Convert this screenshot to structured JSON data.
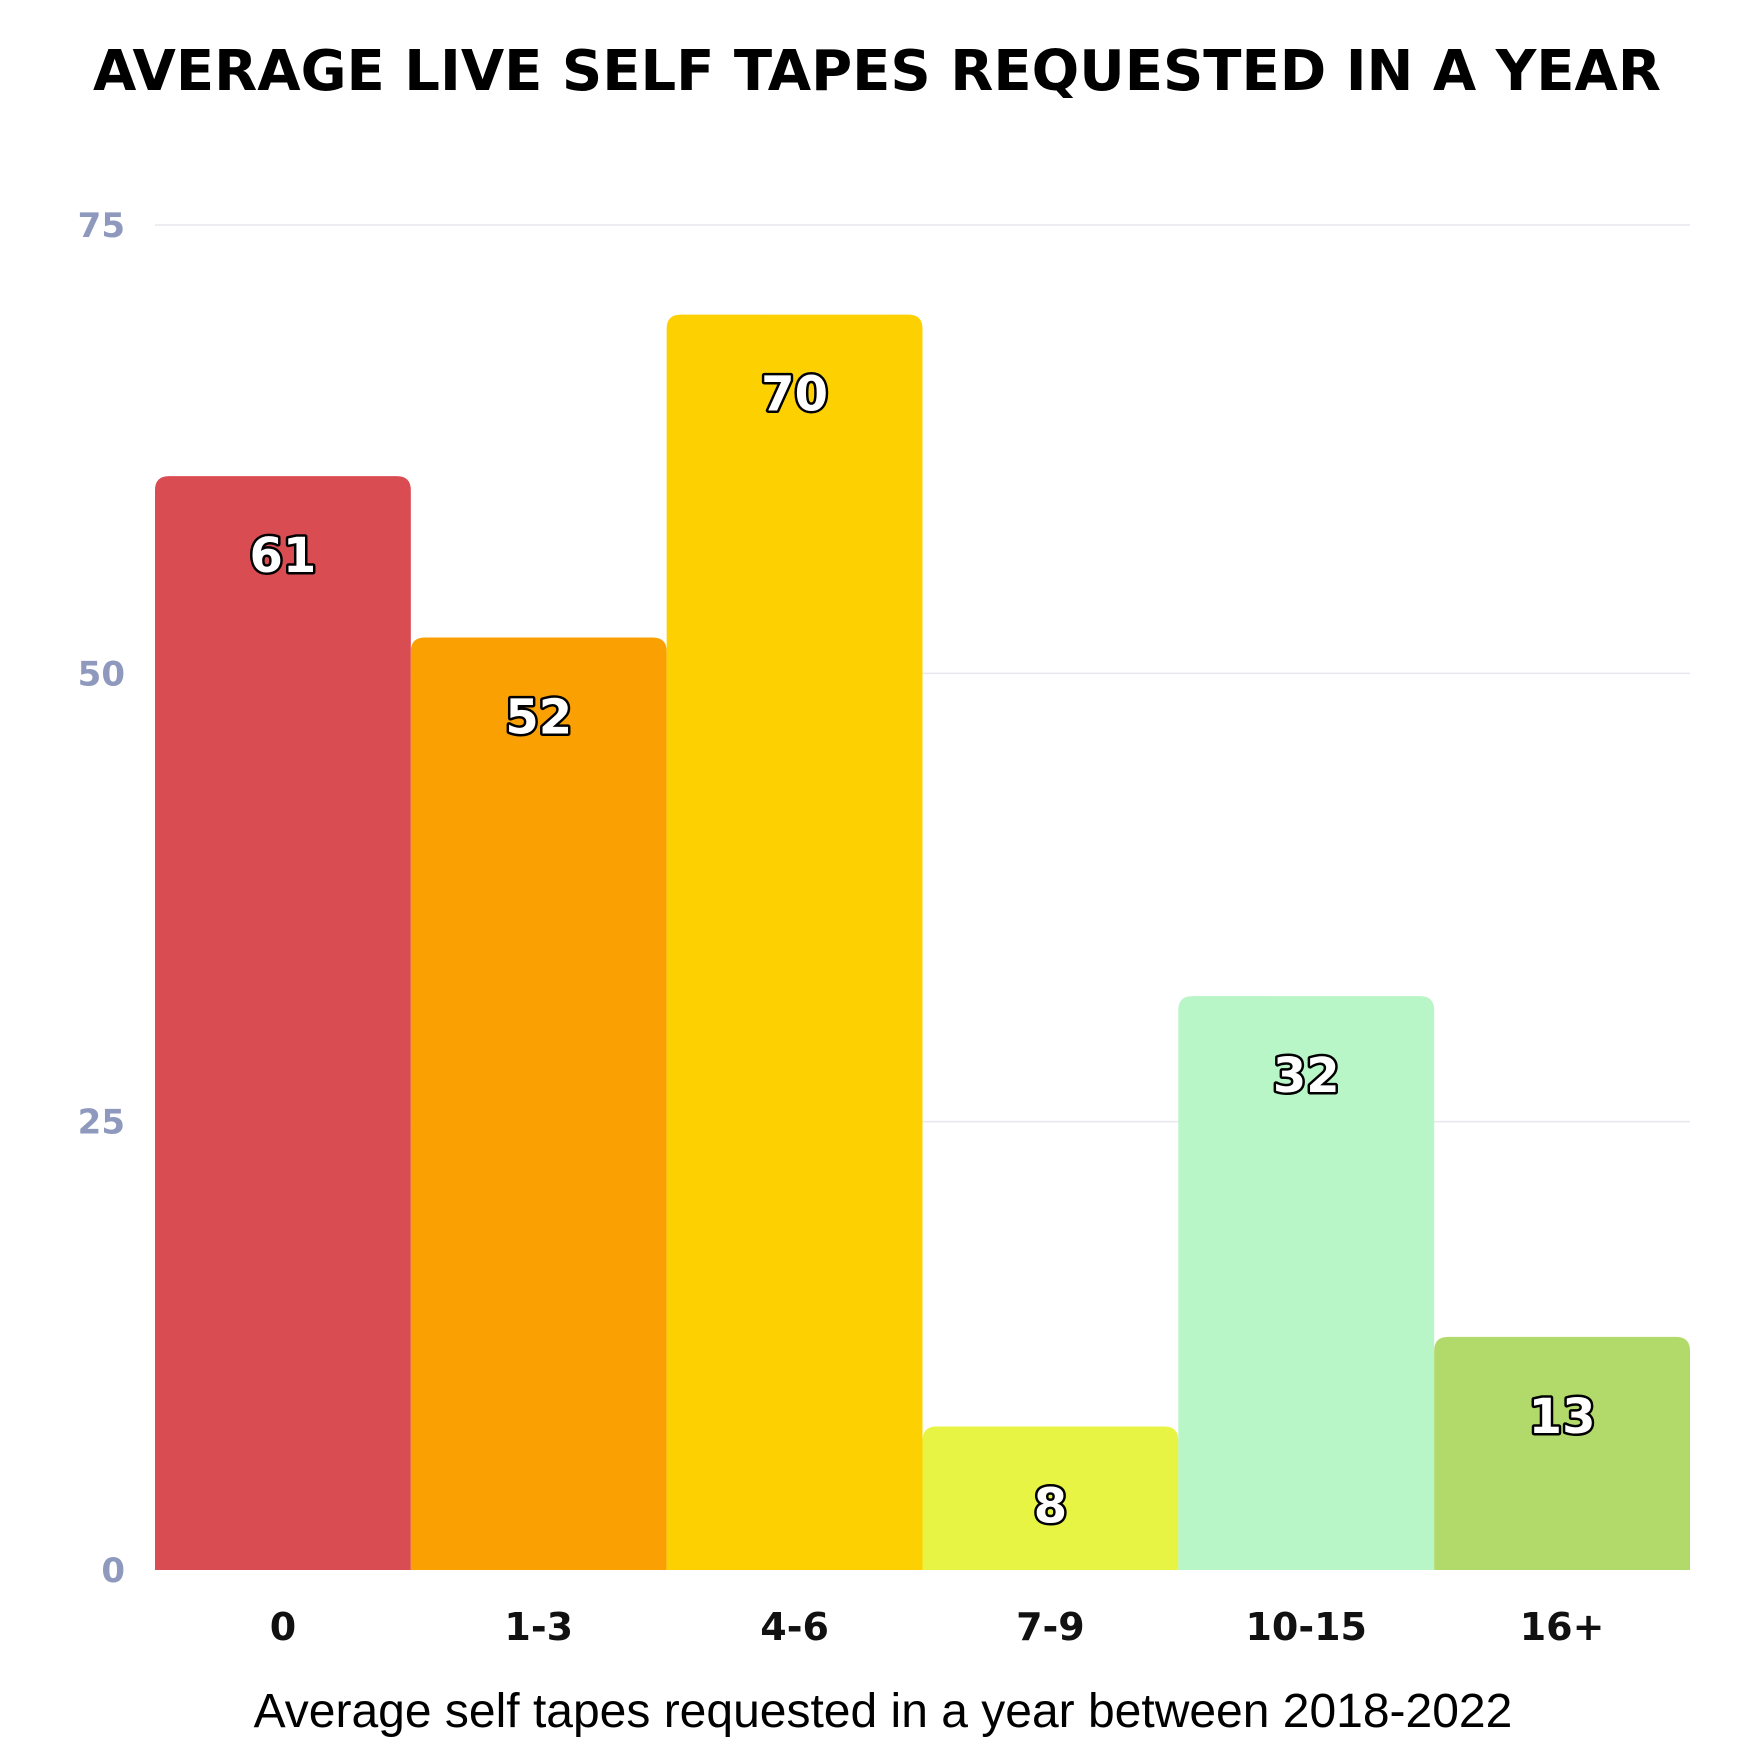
{
  "chart_data": {
    "type": "bar",
    "title": "AVERAGE LIVE SELF TAPES REQUESTED IN A YEAR",
    "xlabel": "Average self tapes requested in a year between 2018-2022",
    "ylabel": "",
    "categories": [
      "0",
      "1-3",
      "4-6",
      "7-9",
      "10-15",
      "16+"
    ],
    "values": [
      61,
      52,
      70,
      8,
      32,
      13
    ],
    "colors": [
      "#d94c52",
      "#fba002",
      "#fdd002",
      "#e8f443",
      "#b8f5c7",
      "#b2da6a"
    ],
    "ylim": [
      0,
      75
    ],
    "yticks": [
      "0",
      "25",
      "50",
      "75"
    ],
    "grid": true,
    "legend": "none"
  }
}
